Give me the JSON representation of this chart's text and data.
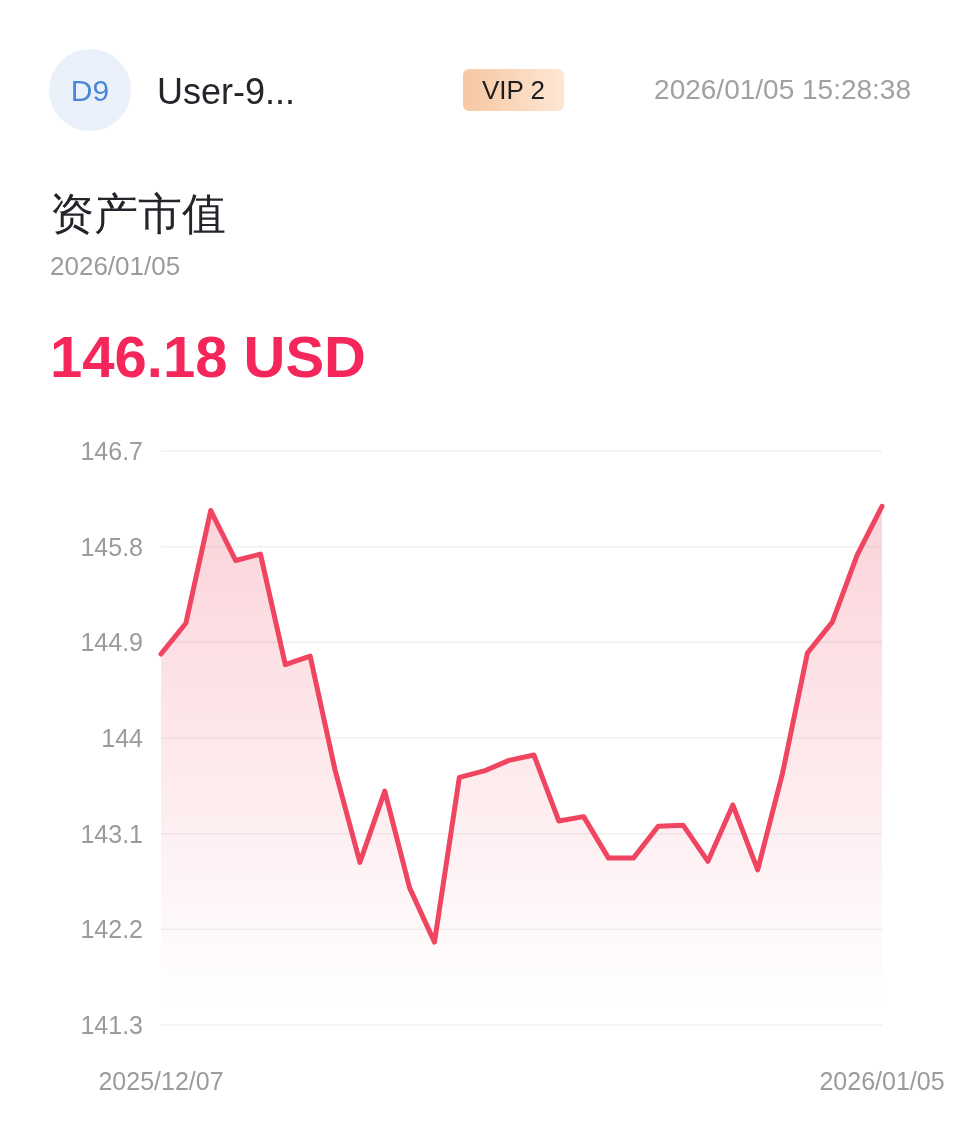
{
  "chart_data": {
    "type": "area",
    "title": "资产市值",
    "subtitle": "2026/01/05",
    "annotations": [
      "D9",
      "User-9...",
      "VIP 2",
      "2026/01/05 15:28:38",
      "146.18 USD"
    ],
    "categories": [
      "2025/12/07",
      null,
      null,
      null,
      null,
      null,
      null,
      null,
      null,
      null,
      null,
      null,
      null,
      null,
      null,
      null,
      null,
      null,
      null,
      null,
      null,
      null,
      null,
      null,
      null,
      null,
      null,
      null,
      null,
      "2026/01/05"
    ],
    "values": [
      144.79,
      145.08,
      146.14,
      145.67,
      145.73,
      144.69,
      144.77,
      143.7,
      142.83,
      143.5,
      142.59,
      142.08,
      143.63,
      143.69,
      143.79,
      143.84,
      143.22,
      143.26,
      142.87,
      142.87,
      143.17,
      143.18,
      142.84,
      143.37,
      142.76,
      143.67,
      144.8,
      145.09,
      145.72,
      146.18
    ],
    "color": "#ef4560",
    "ylim": [
      141.3,
      146.7
    ],
    "yticks": [
      141.3,
      142.2,
      143.1,
      144,
      144.9,
      145.8,
      146.7
    ],
    "grid": "y"
  }
}
